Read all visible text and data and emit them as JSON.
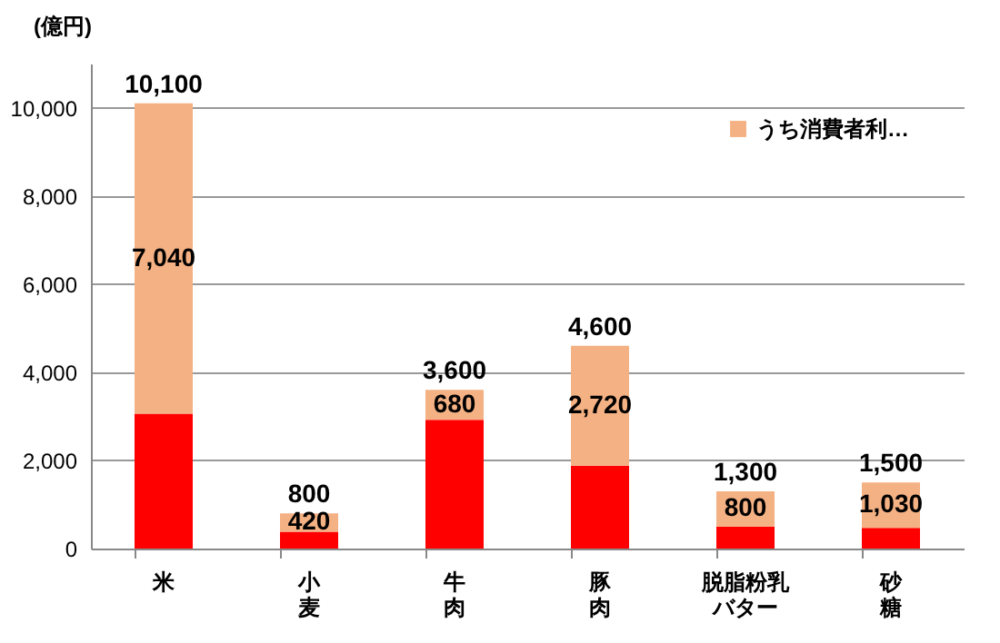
{
  "chart_data": {
    "type": "bar",
    "ylabel": "(億円)",
    "categories": [
      "米",
      "小麦",
      "牛肉",
      "豚肉",
      "脱脂粉乳バター",
      "砂糖"
    ],
    "series": [
      {
        "color": "#ff0000",
        "values": [
          3060,
          380,
          2920,
          1880,
          500,
          470
        ]
      },
      {
        "name": "うち消費者利…",
        "color": "#f4b183",
        "values": [
          7040,
          420,
          680,
          2720,
          800,
          1030
        ],
        "value_labels": [
          "7,040",
          "420",
          "680",
          "2,720",
          "800",
          "1,030"
        ]
      }
    ],
    "stacked": true,
    "totals": [
      "10,100",
      "800",
      "3,600",
      "4,600",
      "1,300",
      "1,500"
    ],
    "ylim": [
      0,
      11000
    ],
    "yticks": [
      0,
      {
        "value": 2000,
        "label": "2,000"
      },
      {
        "value": 4000,
        "label": "4,000"
      },
      {
        "value": 6000,
        "label": "6,000"
      },
      {
        "value": 8000,
        "label": "8,000"
      },
      {
        "value": 10000,
        "label": "10,000"
      }
    ],
    "grid": "y",
    "legend": "top right"
  }
}
